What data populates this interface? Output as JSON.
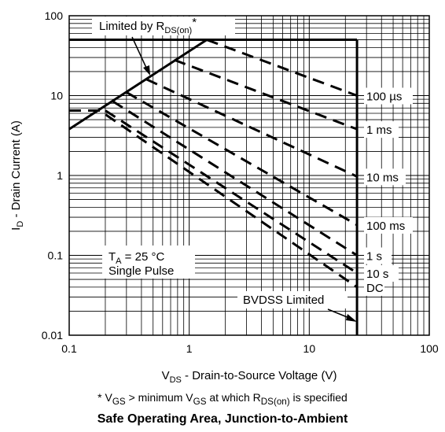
{
  "chart_data": {
    "type": "line",
    "title": "Safe Operating Area, Junction-to-Ambient",
    "footnote": {
      "prefix": "* V",
      "sub1": "GS",
      "mid": " > minimum V",
      "sub2": "GS",
      "mid2": " at which R",
      "sub3": "DS(on)",
      "suffix": " is specified"
    },
    "xlabel": {
      "main": "V",
      "sub": "DS",
      "rest": " - Drain-to-Source Voltage (V)"
    },
    "ylabel": {
      "main": "I",
      "sub": "D",
      "rest": " - Drain Current (A)"
    },
    "x_scale": "log",
    "y_scale": "log",
    "xlim": [
      0.1,
      100
    ],
    "ylim": [
      0.01,
      100
    ],
    "x_ticks": [
      "0.1",
      "1",
      "10",
      "100"
    ],
    "y_ticks": [
      "100",
      "10",
      "1",
      "0.1",
      "0.01"
    ],
    "grid": true,
    "annotations": {
      "rds": {
        "prefix": "Limited by R",
        "sub": "DS(on)",
        "suffix": "*"
      },
      "ta": {
        "prefix": "T",
        "sub": "A",
        "suffix": " = 25 °C"
      },
      "pulse": "Single Pulse",
      "bvdss": "BVDSS Limited"
    },
    "boundary": {
      "rds_limit": [
        [
          0.1,
          3.8
        ],
        [
          1.4,
          50
        ]
      ],
      "current_limit": [
        [
          0.1,
          50
        ],
        [
          25,
          50
        ]
      ],
      "bvdss_limit": [
        [
          25,
          50
        ],
        [
          25,
          0.01
        ]
      ]
    },
    "series": [
      {
        "name": "100 µs",
        "line": [
          [
            1.4,
            50
          ],
          [
            25,
            10
          ]
        ]
      },
      {
        "name": "1 ms",
        "line": [
          [
            0.75,
            28
          ],
          [
            25,
            3.8
          ]
        ]
      },
      {
        "name": "10 ms",
        "line": [
          [
            0.44,
            16
          ],
          [
            25,
            0.97
          ]
        ]
      },
      {
        "name": "100 ms",
        "line": [
          [
            0.3,
            11
          ],
          [
            25,
            0.24
          ]
        ]
      },
      {
        "name": "1 s",
        "line": [
          [
            0.23,
            8.5
          ],
          [
            25,
            0.1
          ]
        ]
      },
      {
        "name": "10 s",
        "line": [
          [
            0.2,
            6.5
          ],
          [
            25,
            0.06
          ]
        ]
      },
      {
        "name": "DC",
        "line": [
          [
            0.1,
            6.5
          ],
          [
            0.18,
            6.5
          ],
          [
            25,
            0.04
          ]
        ]
      }
    ]
  }
}
